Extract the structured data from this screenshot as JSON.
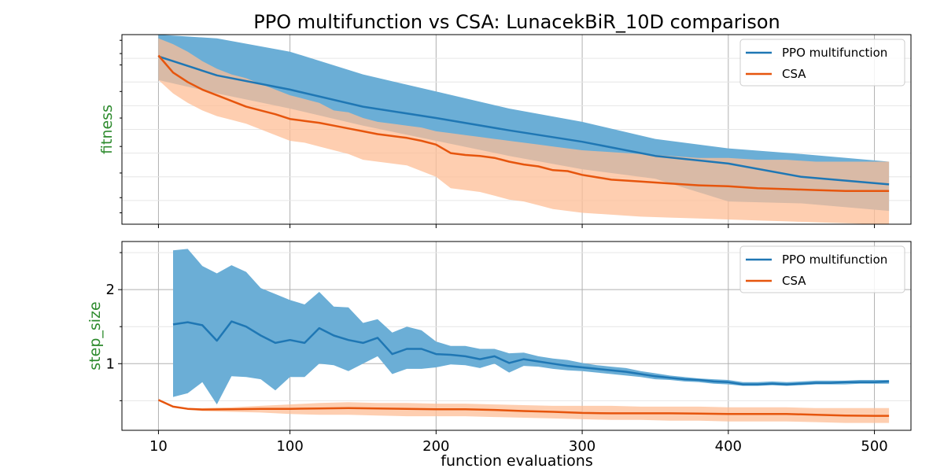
{
  "title": "PPO multifunction vs CSA: LunacekBiR_10D comparison",
  "xlabel": "function evaluations",
  "colors": {
    "ppo": "#1f77b4",
    "ppo_fill": "#6baed6",
    "csa": "#e6550d",
    "csa_fill": "#fdbe95",
    "ylabel": "#2e8b2e"
  },
  "chart_data": [
    {
      "type": "line",
      "ylabel": "fitness",
      "xlim": [
        -15,
        525
      ],
      "ylim": [
        0,
        1
      ],
      "xticks": [
        10,
        100,
        200,
        300,
        400,
        500
      ],
      "yticks": [],
      "grid": true,
      "legend": "top-right",
      "series": [
        {
          "name": "PPO multifunction",
          "x": [
            10,
            50,
            100,
            150,
            200,
            250,
            300,
            350,
            400,
            450,
            510
          ],
          "y": [
            0.885,
            0.785,
            0.71,
            0.62,
            0.56,
            0.495,
            0.435,
            0.36,
            0.32,
            0.25,
            0.21
          ],
          "upper": [
            1.0,
            0.98,
            0.91,
            0.79,
            0.7,
            0.61,
            0.54,
            0.45,
            0.4,
            0.37,
            0.33
          ],
          "lower": [
            0.76,
            0.69,
            0.61,
            0.52,
            0.44,
            0.36,
            0.29,
            0.24,
            0.12,
            0.11,
            0.07
          ]
        },
        {
          "name": "CSA",
          "x": [
            10,
            20,
            30,
            40,
            50,
            60,
            70,
            80,
            90,
            100,
            110,
            120,
            130,
            140,
            150,
            160,
            170,
            180,
            190,
            200,
            210,
            220,
            230,
            240,
            250,
            260,
            270,
            280,
            290,
            300,
            320,
            340,
            360,
            380,
            400,
            420,
            440,
            460,
            480,
            500,
            510
          ],
          "y": [
            0.89,
            0.8,
            0.75,
            0.71,
            0.68,
            0.65,
            0.62,
            0.6,
            0.58,
            0.555,
            0.545,
            0.535,
            0.52,
            0.505,
            0.49,
            0.475,
            0.465,
            0.455,
            0.44,
            0.42,
            0.375,
            0.365,
            0.36,
            0.35,
            0.33,
            0.315,
            0.305,
            0.285,
            0.28,
            0.26,
            0.235,
            0.225,
            0.215,
            0.205,
            0.2,
            0.19,
            0.185,
            0.18,
            0.175,
            0.175,
            0.175
          ],
          "upper": [
            0.98,
            0.95,
            0.91,
            0.86,
            0.82,
            0.79,
            0.77,
            0.74,
            0.71,
            0.68,
            0.66,
            0.64,
            0.6,
            0.59,
            0.56,
            0.54,
            0.53,
            0.52,
            0.51,
            0.49,
            0.48,
            0.47,
            0.46,
            0.45,
            0.44,
            0.43,
            0.42,
            0.41,
            0.4,
            0.39,
            0.38,
            0.37,
            0.36,
            0.35,
            0.35,
            0.34,
            0.34,
            0.33,
            0.33,
            0.33,
            0.33
          ],
          "lower": [
            0.76,
            0.69,
            0.64,
            0.6,
            0.57,
            0.55,
            0.53,
            0.5,
            0.47,
            0.44,
            0.43,
            0.41,
            0.39,
            0.37,
            0.34,
            0.33,
            0.32,
            0.31,
            0.28,
            0.25,
            0.19,
            0.18,
            0.17,
            0.15,
            0.13,
            0.12,
            0.1,
            0.08,
            0.07,
            0.06,
            0.05,
            0.04,
            0.035,
            0.03,
            0.025,
            0.02,
            0.015,
            0.01,
            0.005,
            0.0,
            0.0
          ]
        }
      ]
    },
    {
      "type": "line",
      "ylabel": "step_size",
      "xlim": [
        -15,
        525
      ],
      "ylim": [
        0.1,
        2.65
      ],
      "xticks": [
        10,
        100,
        200,
        300,
        400,
        500
      ],
      "yticks": [
        1,
        2
      ],
      "grid": true,
      "legend": "top-right",
      "series": [
        {
          "name": "PPO multifunction",
          "x": [
            20,
            30,
            40,
            50,
            60,
            70,
            80,
            90,
            100,
            110,
            120,
            130,
            140,
            150,
            160,
            170,
            180,
            190,
            200,
            210,
            220,
            230,
            240,
            250,
            260,
            270,
            280,
            290,
            300,
            310,
            320,
            330,
            340,
            350,
            360,
            370,
            380,
            390,
            400,
            410,
            420,
            430,
            440,
            450,
            460,
            470,
            480,
            490,
            500,
            510
          ],
          "y": [
            1.53,
            1.56,
            1.52,
            1.31,
            1.57,
            1.5,
            1.38,
            1.28,
            1.32,
            1.28,
            1.48,
            1.38,
            1.32,
            1.28,
            1.35,
            1.13,
            1.2,
            1.2,
            1.13,
            1.12,
            1.1,
            1.06,
            1.1,
            1.01,
            1.06,
            1.03,
            1.0,
            0.97,
            0.95,
            0.93,
            0.91,
            0.89,
            0.86,
            0.83,
            0.81,
            0.79,
            0.78,
            0.76,
            0.75,
            0.72,
            0.72,
            0.73,
            0.72,
            0.73,
            0.74,
            0.74,
            0.75,
            0.75,
            0.75,
            0.76
          ],
          "upper": [
            2.53,
            2.55,
            2.32,
            2.22,
            2.33,
            2.24,
            2.02,
            1.94,
            1.86,
            1.8,
            1.97,
            1.77,
            1.76,
            1.55,
            1.6,
            1.42,
            1.5,
            1.45,
            1.3,
            1.24,
            1.24,
            1.2,
            1.2,
            1.14,
            1.15,
            1.1,
            1.07,
            1.05,
            1.01,
            0.98,
            0.96,
            0.94,
            0.9,
            0.87,
            0.84,
            0.82,
            0.8,
            0.79,
            0.78,
            0.75,
            0.75,
            0.76,
            0.75,
            0.76,
            0.77,
            0.77,
            0.77,
            0.78,
            0.78,
            0.78
          ],
          "lower": [
            0.55,
            0.6,
            0.75,
            0.45,
            0.83,
            0.82,
            0.79,
            0.64,
            0.82,
            0.82,
            1.0,
            0.98,
            0.9,
            1.0,
            1.1,
            0.86,
            0.93,
            0.93,
            0.95,
            0.99,
            0.98,
            0.94,
            1.0,
            0.88,
            0.97,
            0.96,
            0.93,
            0.91,
            0.9,
            0.88,
            0.86,
            0.84,
            0.82,
            0.79,
            0.78,
            0.76,
            0.75,
            0.73,
            0.72,
            0.7,
            0.7,
            0.71,
            0.7,
            0.71,
            0.72,
            0.72,
            0.72,
            0.73,
            0.73,
            0.73
          ]
        },
        {
          "name": "CSA",
          "x": [
            10,
            20,
            30,
            40,
            60,
            80,
            100,
            120,
            140,
            160,
            180,
            200,
            220,
            240,
            260,
            280,
            300,
            320,
            340,
            360,
            380,
            400,
            420,
            440,
            460,
            480,
            500,
            510
          ],
          "y": [
            0.51,
            0.42,
            0.39,
            0.38,
            0.385,
            0.39,
            0.39,
            0.395,
            0.4,
            0.395,
            0.39,
            0.385,
            0.385,
            0.375,
            0.36,
            0.35,
            0.335,
            0.33,
            0.33,
            0.33,
            0.325,
            0.32,
            0.32,
            0.32,
            0.31,
            0.3,
            0.295,
            0.295
          ],
          "upper": [
            0.51,
            0.43,
            0.4,
            0.4,
            0.41,
            0.43,
            0.45,
            0.47,
            0.48,
            0.47,
            0.47,
            0.46,
            0.46,
            0.45,
            0.44,
            0.43,
            0.43,
            0.43,
            0.42,
            0.42,
            0.42,
            0.41,
            0.41,
            0.41,
            0.4,
            0.4,
            0.4,
            0.4
          ],
          "lower": [
            0.51,
            0.41,
            0.38,
            0.36,
            0.35,
            0.34,
            0.32,
            0.31,
            0.31,
            0.3,
            0.29,
            0.29,
            0.29,
            0.28,
            0.27,
            0.26,
            0.25,
            0.24,
            0.24,
            0.23,
            0.23,
            0.22,
            0.22,
            0.22,
            0.21,
            0.2,
            0.2,
            0.2
          ]
        }
      ]
    }
  ]
}
